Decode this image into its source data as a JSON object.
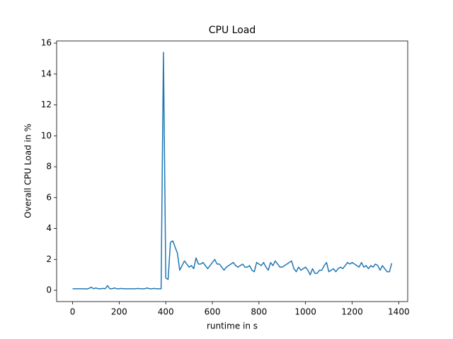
{
  "chart_data": {
    "type": "line",
    "title": "CPU Load",
    "xlabel": "runtime in s",
    "ylabel": "Overall CPU Load in %",
    "x": [
      0,
      10,
      20,
      30,
      40,
      50,
      60,
      70,
      80,
      90,
      100,
      110,
      120,
      130,
      140,
      150,
      160,
      170,
      180,
      190,
      200,
      210,
      220,
      230,
      240,
      250,
      260,
      270,
      280,
      290,
      300,
      310,
      320,
      330,
      340,
      350,
      360,
      370,
      380,
      390,
      400,
      410,
      420,
      430,
      440,
      450,
      460,
      470,
      480,
      490,
      500,
      510,
      520,
      530,
      540,
      550,
      560,
      570,
      580,
      590,
      600,
      610,
      620,
      630,
      640,
      650,
      660,
      670,
      680,
      690,
      700,
      710,
      720,
      730,
      740,
      750,
      760,
      770,
      780,
      790,
      800,
      810,
      820,
      830,
      840,
      850,
      860,
      870,
      880,
      890,
      900,
      910,
      920,
      930,
      940,
      950,
      960,
      970,
      980,
      990,
      1000,
      1010,
      1020,
      1030,
      1040,
      1050,
      1060,
      1070,
      1080,
      1090,
      1100,
      1110,
      1120,
      1130,
      1140,
      1150,
      1160,
      1170,
      1180,
      1190,
      1200,
      1210,
      1220,
      1230,
      1240,
      1250,
      1260,
      1270,
      1280,
      1290,
      1300,
      1310,
      1320,
      1330,
      1340,
      1350,
      1360,
      1370
    ],
    "series": [
      {
        "name": "CPU Load",
        "color": "#1f77b4",
        "values": [
          0.1,
          0.1,
          0.1,
          0.1,
          0.1,
          0.1,
          0.08,
          0.12,
          0.2,
          0.1,
          0.15,
          0.1,
          0.1,
          0.12,
          0.1,
          0.3,
          0.1,
          0.1,
          0.15,
          0.1,
          0.1,
          0.12,
          0.1,
          0.1,
          0.1,
          0.1,
          0.1,
          0.1,
          0.12,
          0.1,
          0.1,
          0.1,
          0.15,
          0.1,
          0.1,
          0.12,
          0.1,
          0.1,
          0.1,
          15.4,
          0.8,
          0.7,
          3.1,
          3.2,
          2.8,
          2.4,
          1.3,
          1.6,
          1.9,
          1.7,
          1.5,
          1.6,
          1.4,
          2.1,
          1.7,
          1.7,
          1.8,
          1.6,
          1.4,
          1.6,
          1.8,
          2.0,
          1.7,
          1.7,
          1.5,
          1.3,
          1.5,
          1.6,
          1.7,
          1.8,
          1.6,
          1.5,
          1.6,
          1.7,
          1.5,
          1.5,
          1.6,
          1.3,
          1.2,
          1.8,
          1.7,
          1.6,
          1.8,
          1.5,
          1.3,
          1.8,
          1.6,
          1.9,
          1.7,
          1.5,
          1.5,
          1.6,
          1.7,
          1.8,
          1.9,
          1.4,
          1.2,
          1.5,
          1.3,
          1.4,
          1.5,
          1.3,
          1.0,
          1.4,
          1.1,
          1.1,
          1.3,
          1.3,
          1.6,
          1.8,
          1.2,
          1.3,
          1.4,
          1.2,
          1.4,
          1.5,
          1.4,
          1.6,
          1.8,
          1.7,
          1.8,
          1.7,
          1.6,
          1.5,
          1.8,
          1.5,
          1.6,
          1.4,
          1.6,
          1.5,
          1.7,
          1.6,
          1.3,
          1.6,
          1.4,
          1.2,
          1.2,
          1.75
        ]
      }
    ],
    "xlim": [
      -68.5,
      1438.5
    ],
    "ylim": [
      -0.73,
      16.14
    ],
    "xticks": [
      0,
      200,
      400,
      600,
      800,
      1000,
      1200,
      1400
    ],
    "yticks": [
      0,
      2,
      4,
      6,
      8,
      10,
      12,
      14,
      16
    ]
  }
}
